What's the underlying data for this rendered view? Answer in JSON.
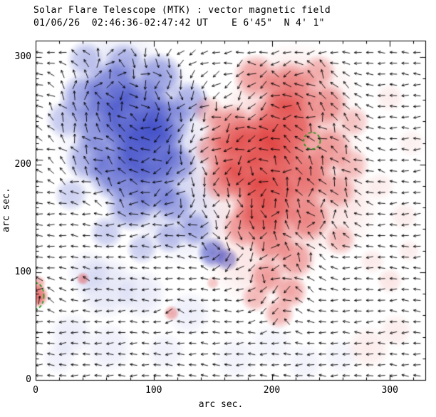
{
  "header": {
    "line1": "Solar Flare Telescope (MTK) : vector magnetic field",
    "line2": "01/06/26  02:46:36-02:47:42 UT    E 6'45\"  N 4' 1\""
  },
  "chart_data": {
    "type": "heatmap",
    "overlay": "vector-arrows",
    "title": "Solar Flare Telescope (MTK) : vector magnetic field",
    "subtitle": "01/06/26  02:46:36-02:47:42 UT    E 6'45\"  N 4' 1\"",
    "xlabel": "arc sec.",
    "ylabel": "arc sec.",
    "xlim": [
      0,
      330
    ],
    "ylim": [
      0,
      315
    ],
    "xticks": [
      0,
      100,
      200,
      300
    ],
    "yticks": [
      0,
      100,
      200,
      300
    ],
    "minor_tick_step": 20,
    "grid": false,
    "legend": "none",
    "vector_grid_step": 10,
    "colors": {
      "positive_polarity": "#de3230",
      "negative_polarity": "#3a48c6",
      "contour": "#129612",
      "vector": "#000000",
      "frame": "#000000",
      "background": "#ffffff"
    },
    "polarity_regions": {
      "negative_blobs": [
        [
          85,
          230,
          62,
          0.16
        ],
        [
          105,
          185,
          46,
          0.14
        ],
        [
          70,
          278,
          40,
          0.14
        ],
        [
          125,
          150,
          35,
          0.12
        ],
        [
          85,
          245,
          30,
          0.75
        ],
        [
          65,
          270,
          22,
          0.6
        ],
        [
          95,
          215,
          28,
          0.8
        ],
        [
          70,
          195,
          24,
          0.65
        ],
        [
          110,
          240,
          20,
          0.55
        ],
        [
          55,
          235,
          22,
          0.55
        ],
        [
          100,
          178,
          20,
          0.55
        ],
        [
          120,
          200,
          15,
          0.45
        ],
        [
          40,
          262,
          18,
          0.45
        ],
        [
          45,
          205,
          18,
          0.4
        ],
        [
          80,
          160,
          18,
          0.45
        ],
        [
          118,
          162,
          14,
          0.38
        ],
        [
          135,
          140,
          14,
          0.4
        ],
        [
          150,
          118,
          12,
          0.65
        ],
        [
          162,
          112,
          9,
          0.55
        ],
        [
          130,
          258,
          16,
          0.4
        ],
        [
          105,
          282,
          18,
          0.45
        ],
        [
          75,
          295,
          15,
          0.35
        ],
        [
          42,
          298,
          14,
          0.3
        ],
        [
          25,
          242,
          15,
          0.3
        ],
        [
          30,
          172,
          13,
          0.26
        ],
        [
          60,
          137,
          13,
          0.28
        ],
        [
          90,
          122,
          12,
          0.28
        ],
        [
          113,
          132,
          12,
          0.3
        ],
        [
          60,
          86,
          24,
          0.13
        ],
        [
          90,
          80,
          19,
          0.11
        ],
        [
          45,
          100,
          17,
          0.11
        ],
        [
          130,
          62,
          17,
          0.09
        ],
        [
          30,
          42,
          17,
          0.1
        ],
        [
          62,
          30,
          19,
          0.09
        ],
        [
          110,
          26,
          15,
          0.08
        ],
        [
          170,
          20,
          17,
          0.07
        ],
        [
          228,
          16,
          15,
          0.07
        ],
        [
          200,
          32,
          18,
          0.06
        ],
        [
          20,
          20,
          13,
          0.08
        ],
        [
          258,
          22,
          14,
          0.06
        ]
      ],
      "positive_blobs": [
        [
          205,
          200,
          70,
          0.16
        ],
        [
          220,
          252,
          50,
          0.14
        ],
        [
          192,
          122,
          45,
          0.13
        ],
        [
          247,
          162,
          40,
          0.11
        ],
        [
          185,
          205,
          32,
          0.8
        ],
        [
          210,
          235,
          28,
          0.75
        ],
        [
          195,
          165,
          26,
          0.78
        ],
        [
          225,
          190,
          24,
          0.62
        ],
        [
          165,
          232,
          20,
          0.55
        ],
        [
          215,
          270,
          22,
          0.58
        ],
        [
          186,
          282,
          17,
          0.45
        ],
        [
          246,
          256,
          17,
          0.45
        ],
        [
          160,
          186,
          18,
          0.55
        ],
        [
          230,
          150,
          18,
          0.5
        ],
        [
          200,
          130,
          18,
          0.5
        ],
        [
          176,
          142,
          16,
          0.45
        ],
        [
          250,
          215,
          17,
          0.4
        ],
        [
          256,
          176,
          14,
          0.35
        ],
        [
          220,
          112,
          15,
          0.42
        ],
        [
          196,
          96,
          14,
          0.42
        ],
        [
          240,
          286,
          13,
          0.35
        ],
        [
          270,
          240,
          12,
          0.26
        ],
        [
          150,
          214,
          14,
          0.4
        ],
        [
          146,
          250,
          12,
          0.27
        ],
        [
          206,
          62,
          12,
          0.38
        ],
        [
          216,
          82,
          13,
          0.42
        ],
        [
          186,
          76,
          11,
          0.32
        ],
        [
          258,
          130,
          12,
          0.3
        ],
        [
          268,
          200,
          13,
          0.28
        ],
        [
          1,
          78,
          9,
          0.7
        ],
        [
          2,
          90,
          6,
          0.4
        ],
        [
          40,
          94,
          5,
          0.45
        ],
        [
          115,
          62,
          6,
          0.4
        ],
        [
          150,
          90,
          5,
          0.28
        ],
        [
          282,
          30,
          17,
          0.09
        ],
        [
          305,
          46,
          13,
          0.09
        ],
        [
          300,
          92,
          10,
          0.13
        ],
        [
          312,
          152,
          11,
          0.09
        ],
        [
          318,
          220,
          11,
          0.07
        ],
        [
          300,
          262,
          11,
          0.09
        ],
        [
          316,
          120,
          9,
          0.09
        ],
        [
          285,
          110,
          10,
          0.1
        ],
        [
          292,
          180,
          11,
          0.09
        ]
      ]
    },
    "contours": [
      {
        "cx": 234,
        "cy": 222,
        "rx": 7,
        "ry": 7
      },
      {
        "cx": 0,
        "cy": 78,
        "rx": 7,
        "ry": 11
      }
    ]
  }
}
